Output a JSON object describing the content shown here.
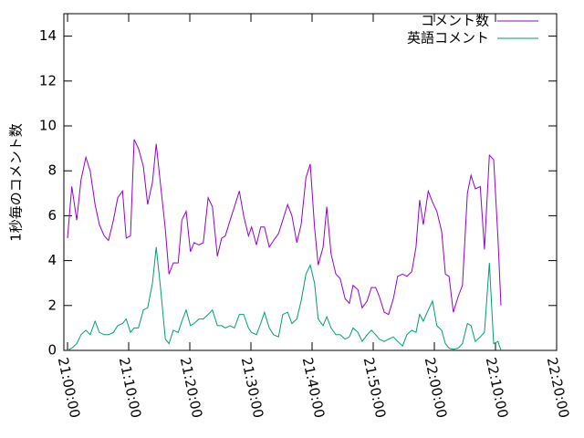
{
  "chart_data": {
    "type": "line",
    "ylabel": "1秒毎のコメント数",
    "x": [
      0,
      0.7,
      1.5,
      2.2,
      3.0,
      3.7,
      4.5,
      5.2,
      6.0,
      6.7,
      7.5,
      8.2,
      9.0,
      9.6,
      10.3,
      10.9,
      11.6,
      12.4,
      13.1,
      13.9,
      14.5,
      15.2,
      16.0,
      16.6,
      17.3,
      18.1,
      18.7,
      19.4,
      20.1,
      20.7,
      21.5,
      22.2,
      23.0,
      23.7,
      24.5,
      25.2,
      25.8,
      26.6,
      27.3,
      28.1,
      28.8,
      29.6,
      30.1,
      30.9,
      31.6,
      32.2,
      33.0,
      33.7,
      34.5,
      35.2,
      36.0,
      36.7,
      37.5,
      38.2,
      39.0,
      39.7,
      40.4,
      41.0,
      41.8,
      42.4,
      43.1,
      43.9,
      44.6,
      45.4,
      46.1,
      46.7,
      47.5,
      48.2,
      49.0,
      49.7,
      50.4,
      51.0,
      51.8,
      52.5,
      53.3,
      54.0,
      54.8,
      55.5,
      56.3,
      57.0,
      57.6,
      58.2,
      59.0,
      59.7,
      60.4,
      61.2,
      61.8,
      62.4,
      63.1,
      63.9,
      64.6,
      65.4,
      66.0,
      66.7,
      67.5,
      68.2,
      69.0,
      69.7,
      70.4,
      70.9
    ],
    "series": [
      {
        "name": "コメント数",
        "color": "#9400d3",
        "values": [
          5.0,
          7.3,
          5.8,
          7.6,
          8.6,
          8.0,
          6.5,
          5.6,
          5.1,
          4.9,
          5.8,
          6.8,
          7.1,
          5.0,
          5.1,
          9.4,
          9.0,
          8.2,
          6.5,
          7.5,
          9.2,
          7.4,
          5.4,
          3.4,
          3.9,
          3.9,
          5.8,
          6.2,
          4.4,
          4.8,
          4.7,
          4.8,
          6.8,
          6.4,
          4.2,
          5.0,
          5.1,
          5.8,
          6.4,
          7.1,
          6.0,
          5.1,
          5.5,
          4.7,
          5.5,
          5.5,
          4.6,
          4.9,
          5.2,
          5.8,
          6.5,
          6.0,
          4.8,
          5.6,
          7.7,
          8.3,
          5.5,
          3.8,
          4.6,
          6.4,
          4.3,
          3.4,
          3.2,
          2.3,
          2.1,
          2.9,
          2.7,
          1.9,
          2.2,
          2.8,
          2.8,
          2.4,
          1.7,
          1.6,
          2.3,
          3.3,
          3.4,
          3.3,
          3.5,
          4.6,
          6.7,
          5.6,
          7.1,
          6.6,
          6.2,
          5.3,
          3.4,
          3.3,
          1.7,
          2.4,
          2.9,
          7.0,
          7.8,
          7.2,
          7.3,
          4.5,
          8.7,
          8.5,
          5.0,
          2.0
        ]
      },
      {
        "name": "英語コメント",
        "color": "#009e73",
        "values": [
          0,
          0.1,
          0.3,
          0.7,
          0.9,
          0.7,
          1.3,
          0.8,
          0.7,
          0.7,
          0.8,
          1.1,
          1.2,
          1.4,
          0.8,
          1.0,
          1.0,
          1.8,
          1.9,
          3.0,
          4.6,
          2.8,
          0.5,
          0.3,
          0.9,
          0.8,
          1.3,
          1.8,
          1.1,
          1.2,
          1.4,
          1.4,
          1.6,
          1.8,
          1.1,
          1.1,
          1.0,
          1.1,
          1.0,
          1.6,
          1.6,
          1.0,
          0.8,
          0.7,
          1.2,
          1.7,
          1.0,
          0.7,
          0.6,
          1.6,
          1.7,
          1.2,
          1.4,
          2.2,
          3.4,
          3.8,
          3.0,
          1.4,
          1.1,
          1.5,
          1.0,
          0.7,
          0.7,
          0.5,
          0.6,
          1.0,
          0.8,
          0.4,
          0.7,
          0.9,
          0.7,
          0.5,
          0.4,
          0.5,
          0.6,
          0.4,
          0.2,
          0.7,
          0.9,
          0.8,
          1.6,
          1.3,
          1.8,
          2.2,
          1.1,
          0.9,
          0.3,
          0.1,
          0.05,
          0.1,
          0.3,
          1.2,
          1.1,
          0.4,
          0.6,
          0.8,
          3.9,
          0.3,
          0.4,
          0
        ]
      }
    ],
    "xlim": [
      -0.6,
      80
    ],
    "xticks": [
      {
        "value": 0,
        "label": "21:00:00"
      },
      {
        "value": 10,
        "label": "21:10:00"
      },
      {
        "value": 20,
        "label": "21:20:00"
      },
      {
        "value": 30,
        "label": "21:30:00"
      },
      {
        "value": 40,
        "label": "21:40:00"
      },
      {
        "value": 50,
        "label": "21:50:00"
      },
      {
        "value": 60,
        "label": "22:00:00"
      },
      {
        "value": 70,
        "label": "22:10:00"
      },
      {
        "value": 80,
        "label": "22:20:00"
      }
    ],
    "ylim": [
      0,
      15
    ],
    "yticks": [
      0,
      2,
      4,
      6,
      8,
      10,
      12,
      14
    ],
    "legend": "upper right"
  }
}
